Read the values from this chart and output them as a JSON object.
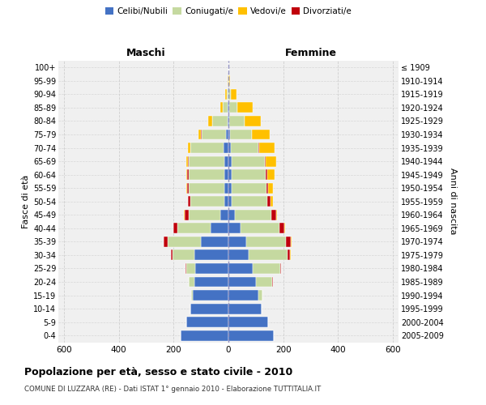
{
  "age_groups": [
    "0-4",
    "5-9",
    "10-14",
    "15-19",
    "20-24",
    "25-29",
    "30-34",
    "35-39",
    "40-44",
    "45-49",
    "50-54",
    "55-59",
    "60-64",
    "65-69",
    "70-74",
    "75-79",
    "80-84",
    "85-89",
    "90-94",
    "95-99",
    "100+"
  ],
  "birth_years": [
    "2005-2009",
    "2000-2004",
    "1995-1999",
    "1990-1994",
    "1985-1989",
    "1980-1984",
    "1975-1979",
    "1970-1974",
    "1965-1969",
    "1960-1964",
    "1955-1959",
    "1950-1954",
    "1945-1949",
    "1940-1944",
    "1935-1939",
    "1930-1934",
    "1925-1929",
    "1920-1924",
    "1915-1919",
    "1910-1914",
    "≤ 1909"
  ],
  "males": {
    "celibi": [
      175,
      155,
      140,
      130,
      125,
      120,
      125,
      100,
      65,
      30,
      14,
      14,
      15,
      15,
      18,
      8,
      4,
      2,
      1,
      0,
      0
    ],
    "coniugati": [
      0,
      0,
      0,
      5,
      20,
      35,
      80,
      120,
      120,
      115,
      125,
      130,
      130,
      130,
      120,
      90,
      55,
      18,
      5,
      1,
      0
    ],
    "vedovi": [
      0,
      0,
      0,
      0,
      0,
      0,
      0,
      1,
      1,
      1,
      2,
      3,
      5,
      5,
      8,
      10,
      15,
      10,
      5,
      1,
      0
    ],
    "divorziati": [
      0,
      0,
      0,
      0,
      0,
      1,
      5,
      15,
      15,
      15,
      8,
      7,
      5,
      3,
      2,
      2,
      1,
      0,
      0,
      0,
      0
    ]
  },
  "females": {
    "nubili": [
      165,
      145,
      120,
      110,
      100,
      90,
      75,
      65,
      45,
      25,
      13,
      13,
      12,
      12,
      10,
      5,
      3,
      2,
      1,
      0,
      0
    ],
    "coniugate": [
      0,
      0,
      0,
      15,
      60,
      100,
      140,
      145,
      140,
      130,
      130,
      125,
      125,
      120,
      100,
      80,
      55,
      30,
      8,
      2,
      0
    ],
    "vedove": [
      0,
      0,
      0,
      0,
      0,
      1,
      1,
      3,
      3,
      5,
      8,
      15,
      25,
      40,
      55,
      65,
      60,
      55,
      20,
      3,
      0
    ],
    "divorziate": [
      0,
      0,
      0,
      0,
      1,
      2,
      10,
      18,
      20,
      18,
      10,
      8,
      5,
      3,
      2,
      2,
      1,
      1,
      0,
      0,
      0
    ]
  },
  "colors": {
    "celibi": "#4472c4",
    "coniugati": "#c5d9a0",
    "vedovi": "#ffc000",
    "divorziati": "#c0000b"
  },
  "xlim": 620,
  "title": "Popolazione per età, sesso e stato civile - 2010",
  "subtitle": "COMUNE DI LUZZARA (RE) - Dati ISTAT 1° gennaio 2010 - Elaborazione TUTTITALIA.IT",
  "ylabel_left": "Fasce di età",
  "ylabel_right": "Anni di nascita",
  "xlabel_maschi": "Maschi",
  "xlabel_femmine": "Femmine",
  "bg_color": "#f0f0f0",
  "grid_color": "#cccccc"
}
